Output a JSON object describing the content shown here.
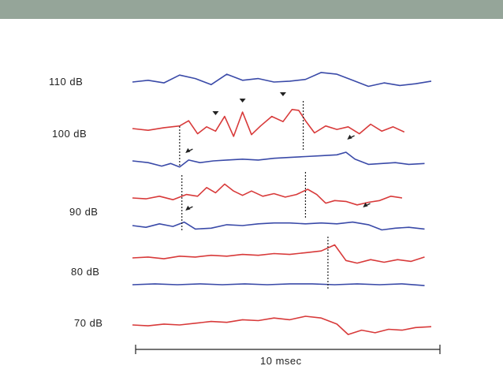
{
  "slide": {
    "header_band_color": "#95a599",
    "background": "#ffffff"
  },
  "chart_data": {
    "type": "line",
    "title": "",
    "xlabel": "",
    "ylabel": "",
    "grid": false,
    "scale_bar_label": "10 msec",
    "xlim": [
      0,
      13.5
    ],
    "level_labels": [
      "110 dB",
      "100 dB",
      "90 dB",
      "80 dB",
      "70 dB"
    ],
    "colors": {
      "red": "#d83a3a",
      "blue": "#3a4aa8",
      "ink": "#222222"
    },
    "series": [
      {
        "level": "110 dB",
        "color": "blue",
        "x": [
          0,
          0.7,
          1.4,
          2.1,
          2.8,
          3.5,
          4.2,
          4.9,
          5.6,
          6.3,
          7.0,
          7.7,
          8.4,
          9.1,
          9.8,
          10.5,
          11.2,
          11.9,
          12.6,
          13.3
        ],
        "y": [
          0,
          0.2,
          -0.1,
          0.8,
          0.4,
          -0.3,
          0.9,
          0.2,
          0.4,
          0.0,
          0.1,
          0.3,
          1.1,
          0.9,
          0.2,
          -0.5,
          -0.1,
          -0.4,
          -0.2,
          0.1
        ]
      },
      {
        "level": "100 dB",
        "color": "red",
        "x": [
          0,
          0.7,
          1.4,
          2.1,
          2.5,
          2.9,
          3.3,
          3.7,
          4.1,
          4.5,
          4.9,
          5.3,
          5.7,
          6.2,
          6.7,
          7.1,
          7.4,
          7.7,
          8.1,
          8.6,
          9.1,
          9.6,
          10.1,
          10.6,
          11.1,
          11.6,
          12.1
        ],
        "y": [
          0,
          -0.2,
          0.1,
          0.3,
          0.9,
          -0.6,
          0.2,
          -0.3,
          1.4,
          -0.9,
          1.9,
          -0.7,
          0.3,
          1.4,
          0.8,
          2.2,
          2.1,
          0.9,
          -0.5,
          0.3,
          -0.1,
          0.2,
          -0.6,
          0.5,
          -0.3,
          0.2,
          -0.4
        ]
      },
      {
        "level": "100 dB",
        "color": "blue",
        "x": [
          0,
          0.7,
          1.3,
          1.7,
          2.1,
          2.5,
          3.0,
          3.6,
          4.2,
          4.9,
          5.6,
          6.3,
          7.0,
          7.7,
          8.4,
          9.1,
          9.5,
          9.9,
          10.5,
          11.1,
          11.7,
          12.3,
          13.0
        ],
        "y": [
          0,
          -0.2,
          -0.6,
          -0.3,
          -0.7,
          0.1,
          -0.2,
          0.0,
          0.1,
          0.2,
          0.1,
          0.3,
          0.4,
          0.5,
          0.6,
          0.7,
          1.0,
          0.2,
          -0.4,
          -0.3,
          -0.2,
          -0.4,
          -0.3
        ]
      },
      {
        "level": "90 dB",
        "color": "red",
        "x": [
          0,
          0.6,
          1.2,
          1.8,
          2.4,
          2.9,
          3.3,
          3.7,
          4.1,
          4.5,
          4.9,
          5.3,
          5.8,
          6.3,
          6.8,
          7.3,
          7.8,
          8.2,
          8.6,
          9.0,
          9.5,
          10.0,
          10.5,
          11.0,
          11.5,
          12.0
        ],
        "y": [
          0,
          -0.1,
          0.2,
          -0.2,
          0.4,
          0.2,
          1.2,
          0.6,
          1.6,
          0.8,
          0.3,
          0.8,
          0.2,
          0.5,
          0.1,
          0.4,
          1.0,
          0.4,
          -0.6,
          -0.3,
          -0.4,
          -0.8,
          -0.5,
          -0.3,
          0.2,
          0.0
        ]
      },
      {
        "level": "90 dB",
        "color": "blue",
        "x": [
          0,
          0.6,
          1.2,
          1.8,
          2.3,
          2.8,
          3.5,
          4.2,
          4.9,
          5.6,
          6.3,
          7.0,
          7.7,
          8.4,
          9.1,
          9.8,
          10.5,
          11.1,
          11.7,
          12.3,
          13.0
        ],
        "y": [
          0,
          -0.2,
          0.2,
          -0.1,
          0.4,
          -0.4,
          -0.3,
          0.1,
          0.0,
          0.2,
          0.3,
          0.3,
          0.2,
          0.3,
          0.2,
          0.4,
          0.1,
          -0.5,
          -0.3,
          -0.2,
          -0.4
        ]
      },
      {
        "level": "80 dB",
        "color": "red",
        "x": [
          0,
          0.7,
          1.4,
          2.1,
          2.8,
          3.5,
          4.2,
          4.9,
          5.6,
          6.3,
          7.0,
          7.7,
          8.4,
          9.0,
          9.5,
          10.0,
          10.6,
          11.2,
          11.8,
          12.4,
          13.0
        ],
        "y": [
          0,
          0.1,
          -0.1,
          0.2,
          0.1,
          0.3,
          0.2,
          0.4,
          0.3,
          0.5,
          0.4,
          0.6,
          0.8,
          1.5,
          -0.3,
          -0.6,
          -0.2,
          -0.5,
          -0.2,
          -0.4,
          0.1
        ]
      },
      {
        "level": "80 dB",
        "color": "blue",
        "x": [
          0,
          1.0,
          2.0,
          3.0,
          4.0,
          5.0,
          6.0,
          7.0,
          8.0,
          9.0,
          10.0,
          11.0,
          12.0,
          13.0
        ],
        "y": [
          0,
          0.1,
          0.0,
          0.1,
          0.0,
          0.1,
          0.0,
          0.1,
          0.1,
          0.0,
          0.1,
          0.0,
          0.1,
          -0.1
        ]
      },
      {
        "level": "70 dB",
        "color": "red",
        "x": [
          0,
          0.7,
          1.4,
          2.1,
          2.8,
          3.5,
          4.2,
          4.9,
          5.6,
          6.3,
          7.0,
          7.7,
          8.4,
          9.1,
          9.6,
          10.2,
          10.8,
          11.4,
          12.0,
          12.6,
          13.3
        ],
        "y": [
          0,
          -0.1,
          0.1,
          0.0,
          0.2,
          0.4,
          0.3,
          0.6,
          0.5,
          0.8,
          0.6,
          1.0,
          0.8,
          0.1,
          -1.1,
          -0.6,
          -0.9,
          -0.5,
          -0.6,
          -0.3,
          -0.2
        ]
      }
    ],
    "annotations": [
      {
        "kind": "triangle-marker",
        "level": "100 dB",
        "x": 3.7
      },
      {
        "kind": "triangle-marker",
        "level": "100 dB",
        "x": 4.9
      },
      {
        "kind": "triangle-marker",
        "level": "100 dB",
        "x": 6.7
      },
      {
        "kind": "arrow-marker",
        "level": "100 dB blue",
        "x": 2.4
      },
      {
        "kind": "arrow-marker",
        "level": "100 dB blue",
        "x": 9.6
      },
      {
        "kind": "arrow-marker",
        "level": "90 dB blue",
        "x": 2.4
      },
      {
        "kind": "arrow-marker",
        "level": "90 dB blue",
        "x": 10.3
      },
      {
        "kind": "dotted-latency-line",
        "levels": "100 dB",
        "x": 2.1
      },
      {
        "kind": "dotted-latency-line",
        "levels": "100 dB",
        "x": 7.6
      },
      {
        "kind": "dotted-latency-line",
        "levels": "90 dB",
        "x": 2.2
      },
      {
        "kind": "dotted-latency-line",
        "levels": "90 dB",
        "x": 7.7
      },
      {
        "kind": "dotted-latency-line",
        "levels": "80 dB",
        "x": 8.7
      }
    ]
  }
}
